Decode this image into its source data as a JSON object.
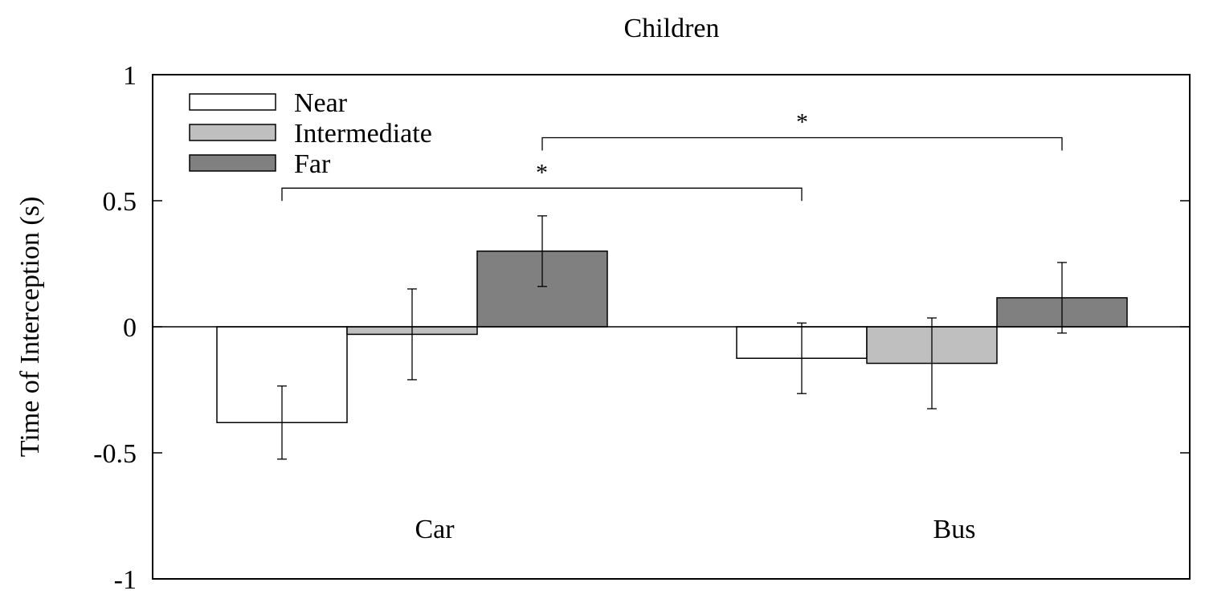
{
  "chart_data": {
    "type": "bar",
    "title": "Children",
    "ylabel": "Time of Interception (s)",
    "xlabel": "",
    "ylim": [
      -1,
      1
    ],
    "yticks": [
      {
        "value": 1,
        "label": "1"
      },
      {
        "value": 0.5,
        "label": "0.5"
      },
      {
        "value": 0,
        "label": "0"
      },
      {
        "value": -0.5,
        "label": "-0.5"
      },
      {
        "value": -1,
        "label": "-1"
      }
    ],
    "categories": [
      "Car",
      "Bus"
    ],
    "series": [
      {
        "name": "Near",
        "color": "#ffffff",
        "values": [
          -0.38,
          -0.125
        ],
        "errors": [
          0.145,
          0.14
        ]
      },
      {
        "name": "Intermediate",
        "color": "#bfbfbf",
        "values": [
          -0.03,
          -0.145
        ],
        "errors": [
          0.18,
          0.18
        ]
      },
      {
        "name": "Far",
        "color": "#808080",
        "values": [
          0.3,
          0.115
        ],
        "errors": [
          0.14,
          0.14
        ]
      }
    ],
    "legend": {
      "position": "top-left"
    },
    "significance": [
      {
        "from": {
          "category": 0,
          "series": 0
        },
        "to": {
          "category": 1,
          "series": 0
        },
        "y": 0.55,
        "label": "*"
      },
      {
        "from": {
          "category": 0,
          "series": 2
        },
        "to": {
          "category": 1,
          "series": 2
        },
        "y": 0.75,
        "label": "*"
      }
    ],
    "grid": false
  }
}
